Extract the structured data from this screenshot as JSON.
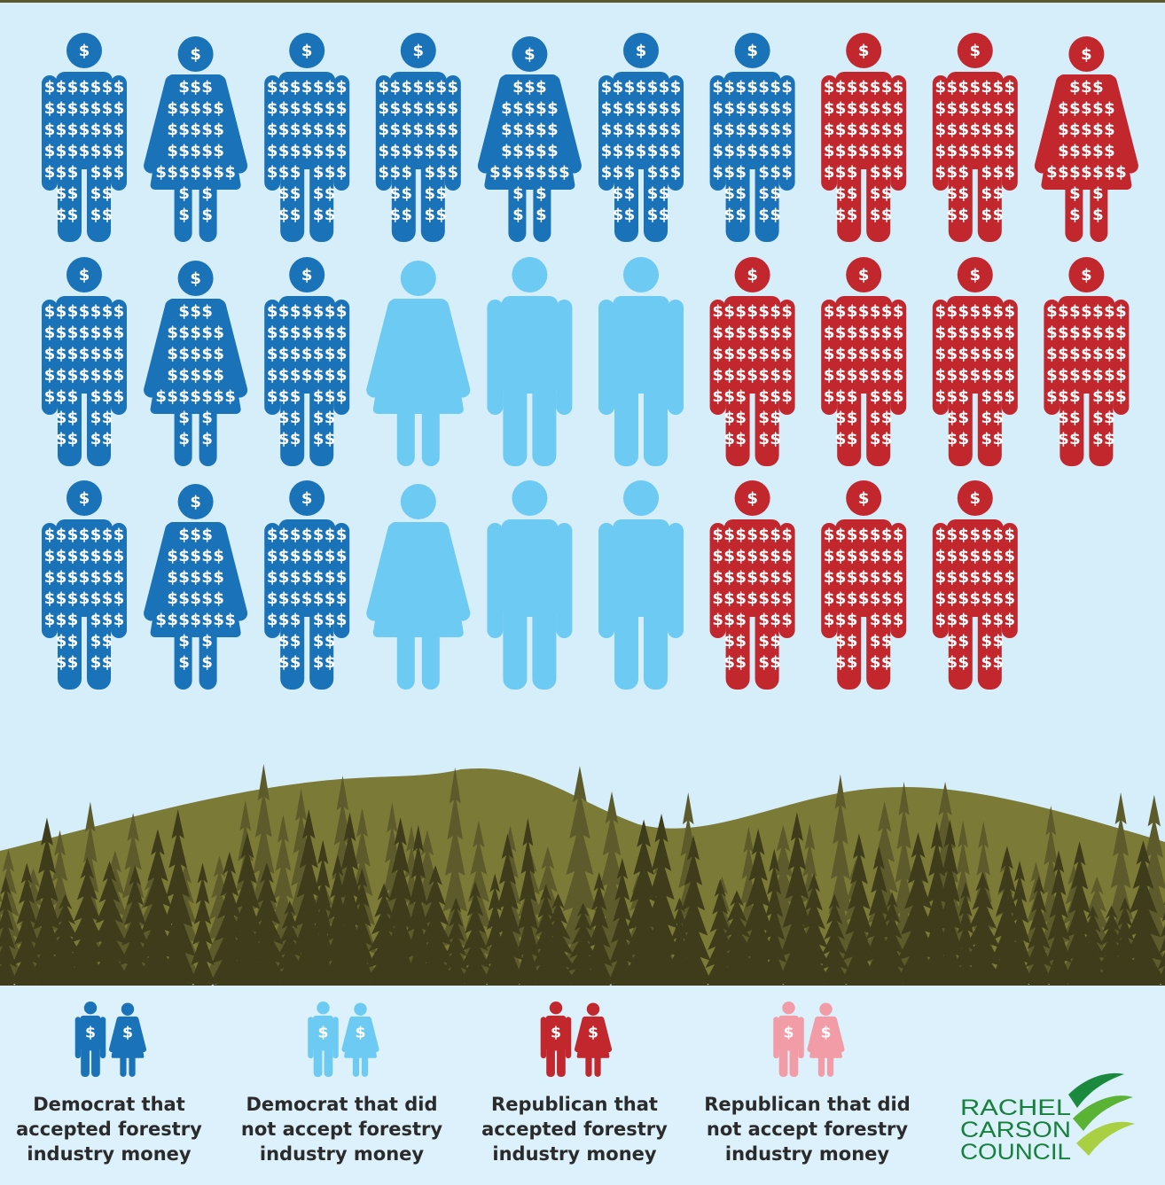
{
  "money_symbol": "$",
  "legend": [
    {
      "color": "#1a72b8",
      "accepted": true,
      "lines": [
        "Democrat that",
        "accepted forestry",
        "industry money"
      ]
    },
    {
      "color": "#6dcaf2",
      "accepted": false,
      "lines": [
        "Democrat that did",
        "not accept forestry",
        "industry money"
      ]
    },
    {
      "color": "#c1272d",
      "accepted": true,
      "lines": [
        "Republican that",
        "accepted forestry",
        "industry money"
      ]
    },
    {
      "color": "#f29ca8",
      "accepted": false,
      "lines": [
        "Republican that did",
        "not accept forestry",
        "industry money"
      ]
    }
  ],
  "figures": [
    [
      {
        "group": 0,
        "shape": "male"
      },
      {
        "group": 0,
        "shape": "female"
      },
      {
        "group": 0,
        "shape": "male"
      },
      {
        "group": 0,
        "shape": "male"
      },
      {
        "group": 0,
        "shape": "female"
      },
      {
        "group": 0,
        "shape": "male"
      },
      {
        "group": 0,
        "shape": "male"
      },
      {
        "group": 2,
        "shape": "male"
      },
      {
        "group": 2,
        "shape": "male"
      },
      {
        "group": 2,
        "shape": "female"
      }
    ],
    [
      {
        "group": 0,
        "shape": "male"
      },
      {
        "group": 0,
        "shape": "female"
      },
      {
        "group": 0,
        "shape": "male"
      },
      {
        "group": 1,
        "shape": "female"
      },
      {
        "group": 1,
        "shape": "male"
      },
      {
        "group": 1,
        "shape": "male"
      },
      {
        "group": 2,
        "shape": "male"
      },
      {
        "group": 2,
        "shape": "male"
      },
      {
        "group": 2,
        "shape": "male"
      },
      {
        "group": 2,
        "shape": "male"
      }
    ],
    [
      {
        "group": 0,
        "shape": "male"
      },
      {
        "group": 0,
        "shape": "female"
      },
      {
        "group": 0,
        "shape": "male"
      },
      {
        "group": 1,
        "shape": "female"
      },
      {
        "group": 1,
        "shape": "male"
      },
      {
        "group": 1,
        "shape": "male"
      },
      {
        "group": 2,
        "shape": "male"
      },
      {
        "group": 2,
        "shape": "male"
      },
      {
        "group": 2,
        "shape": "male"
      }
    ]
  ],
  "logo": {
    "lines": [
      "RACHEL",
      "CARSON",
      "COUNCIL"
    ]
  }
}
